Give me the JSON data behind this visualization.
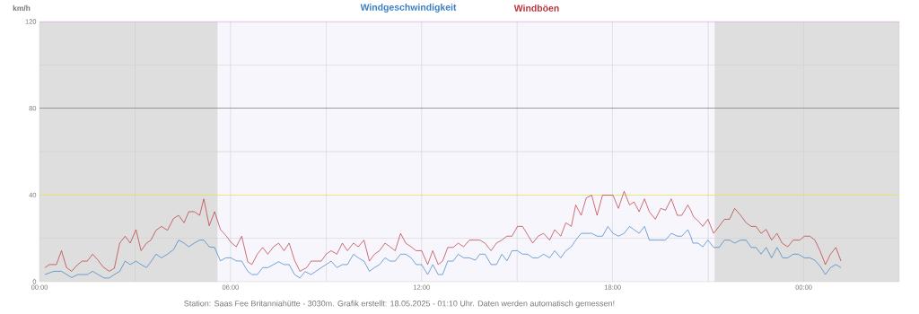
{
  "chart_data": {
    "type": "line",
    "ylabel": "km/h",
    "xlim": [
      0,
      27
    ],
    "ylim": [
      0,
      120
    ],
    "xticks": [
      {
        "value": 0,
        "label": "00:00"
      },
      {
        "value": 3,
        "label": null
      },
      {
        "value": 6,
        "label": "06:00"
      },
      {
        "value": 9,
        "label": null
      },
      {
        "value": 12,
        "label": "12:00"
      },
      {
        "value": 15,
        "label": null
      },
      {
        "value": 18,
        "label": "18:00"
      },
      {
        "value": 21,
        "label": null
      },
      {
        "value": 24,
        "label": "00:00"
      },
      {
        "value": 27,
        "label": null
      }
    ],
    "yticks": [
      0,
      {
        "value": 20,
        "label": null
      },
      40,
      {
        "value": 60,
        "label": null
      },
      80,
      {
        "value": 100,
        "label": null
      },
      120
    ],
    "grid": true,
    "legend": "top",
    "bands": [
      {
        "axis": "x",
        "from": 0,
        "to": 5.6,
        "color": "#dedede"
      },
      {
        "axis": "x",
        "from": 5.6,
        "to": 21.2,
        "color": "#f8f6fd"
      },
      {
        "axis": "x",
        "from": 21.2,
        "to": 27,
        "color": "#dedede"
      }
    ],
    "ref_lines": [
      {
        "axis": "y",
        "value": 120,
        "color": "#ee82ee"
      },
      {
        "axis": "y",
        "value": 80,
        "color": "#555555"
      },
      {
        "axis": "y",
        "value": 40,
        "color": "#f0f000"
      }
    ],
    "annotations": [
      "Station: Saas Fee Britanniahütte - 3030m. Grafik erstellt: 18.05.2025 - 01:10 Uhr. Daten werden automatisch gemessen!"
    ],
    "series": [
      {
        "name": "Windgeschwindigkeit",
        "color": "#3a7fc1",
        "x": [
          0.17,
          0.45,
          0.69,
          1.01,
          1.2,
          1.5,
          1.67,
          1.84,
          2.03,
          2.19,
          2.35,
          2.52,
          2.69,
          2.85,
          3.03,
          3.19,
          3.36,
          3.5,
          3.66,
          3.83,
          4.02,
          4.21,
          4.37,
          4.54,
          4.69,
          4.86,
          5.03,
          5.16,
          5.33,
          5.5,
          5.68,
          5.85,
          6.01,
          6.18,
          6.35,
          6.54,
          6.67,
          6.84,
          7.01,
          7.17,
          7.35,
          7.51,
          7.68,
          7.84,
          8.01,
          8.18,
          8.34,
          8.53,
          8.85,
          9.0,
          9.16,
          9.34,
          9.51,
          9.67,
          9.86,
          10.01,
          10.19,
          10.36,
          10.52,
          10.68,
          10.85,
          11.01,
          11.17,
          11.34,
          11.5,
          11.67,
          11.83,
          12.0,
          12.19,
          12.35,
          12.52,
          12.66,
          12.82,
          12.99,
          13.15,
          13.32,
          13.5,
          13.69,
          13.83,
          13.99,
          14.18,
          14.35,
          14.52,
          14.68,
          14.84,
          15.01,
          15.17,
          15.33,
          15.49,
          15.66,
          15.83,
          16.02,
          16.18,
          16.37,
          16.53,
          16.7,
          16.84,
          17.01,
          17.34,
          17.51,
          17.68,
          17.85,
          18.01,
          18.18,
          18.36,
          18.53,
          18.67,
          18.83,
          19.0,
          19.15,
          19.34,
          19.51,
          19.66,
          19.84,
          20.03,
          20.17,
          20.36,
          20.45,
          20.52,
          20.68,
          20.83,
          20.99,
          21.17,
          21.34,
          21.51,
          21.67,
          21.83,
          22.02,
          22.19,
          22.35,
          22.5,
          22.66,
          22.82,
          22.99,
          23.16,
          23.34,
          23.5,
          23.67,
          23.83,
          24.02,
          24.19,
          24.35,
          24.51,
          24.68,
          24.84,
          25.01,
          25.17
        ],
        "values": [
          3.3,
          4.8,
          4.8,
          1.9,
          3.3,
          3.3,
          4.8,
          3.3,
          1.7,
          1.7,
          3.3,
          4.8,
          9.5,
          7.9,
          9.5,
          7.9,
          6.5,
          9.2,
          12.7,
          11.0,
          12.7,
          14.8,
          19.2,
          17.8,
          16.1,
          17.8,
          19.2,
          19.2,
          16.1,
          15.8,
          9.6,
          11.0,
          11.0,
          9.6,
          9.5,
          4.8,
          3.3,
          3.3,
          6.5,
          6.5,
          7.9,
          9.2,
          7.9,
          7.9,
          3.3,
          1.7,
          4.7,
          3.3,
          6.5,
          7.9,
          9.5,
          6.5,
          7.9,
          7.9,
          12.7,
          11.0,
          9.5,
          4.8,
          6.5,
          7.9,
          11.0,
          9.5,
          9.5,
          12.7,
          12.7,
          11.0,
          7.9,
          7.9,
          3.3,
          7.9,
          3.3,
          3.3,
          9.5,
          9.5,
          12.7,
          11.0,
          11.0,
          9.9,
          12.7,
          12.7,
          7.9,
          7.9,
          12.7,
          9.6,
          14.3,
          14.3,
          12.7,
          12.7,
          11.0,
          11.0,
          12.7,
          11.0,
          14.3,
          11.0,
          14.3,
          16.1,
          19.2,
          22.3,
          22.3,
          21.0,
          21.0,
          25.5,
          22.3,
          21.0,
          22.3,
          25.5,
          24.0,
          22.3,
          25.5,
          19.2,
          19.2,
          19.2,
          19.2,
          22.3,
          21.0,
          21.0,
          24.0,
          21.0,
          17.8,
          17.8,
          16.1,
          19.2,
          15.8,
          15.8,
          19.2,
          19.2,
          17.8,
          19.2,
          19.2,
          15.8,
          15.8,
          12.7,
          15.8,
          11.0,
          15.8,
          11.0,
          11.0,
          12.7,
          12.7,
          11.0,
          11.0,
          9.9,
          7.2,
          3.3,
          6.5,
          7.9,
          6.5
        ]
      },
      {
        "name": "Windböen",
        "color": "#b8323a",
        "x": [
          0.17,
          0.31,
          0.53,
          0.69,
          0.85,
          1.01,
          1.2,
          1.34,
          1.5,
          1.67,
          1.84,
          2.0,
          2.19,
          2.35,
          2.52,
          2.69,
          2.85,
          3.03,
          3.19,
          3.36,
          3.5,
          3.66,
          3.83,
          4.02,
          4.21,
          4.37,
          4.54,
          4.69,
          4.86,
          5.03,
          5.16,
          5.33,
          5.5,
          5.68,
          5.85,
          6.01,
          6.18,
          6.35,
          6.54,
          6.67,
          6.84,
          7.01,
          7.17,
          7.35,
          7.51,
          7.68,
          7.84,
          8.01,
          8.18,
          8.39,
          8.53,
          8.85,
          9.0,
          9.16,
          9.34,
          9.51,
          9.67,
          9.86,
          10.01,
          10.19,
          10.36,
          10.52,
          10.68,
          10.85,
          11.01,
          11.17,
          11.34,
          11.5,
          11.67,
          11.83,
          12.0,
          12.19,
          12.35,
          12.52,
          12.66,
          12.82,
          12.99,
          13.15,
          13.32,
          13.5,
          13.69,
          13.83,
          13.99,
          14.18,
          14.35,
          14.52,
          14.68,
          14.84,
          15.01,
          15.17,
          15.33,
          15.49,
          15.66,
          15.83,
          16.02,
          16.18,
          16.37,
          16.53,
          16.7,
          16.84,
          17.01,
          17.17,
          17.34,
          17.51,
          17.68,
          18.01,
          18.18,
          18.36,
          18.53,
          18.67,
          18.83,
          19.0,
          19.15,
          19.34,
          19.51,
          19.66,
          19.84,
          20.03,
          20.17,
          20.36,
          20.45,
          20.54,
          20.68,
          20.83,
          20.99,
          21.17,
          21.34,
          21.51,
          21.67,
          21.83,
          22.02,
          22.19,
          22.35,
          22.5,
          22.66,
          22.82,
          22.99,
          23.16,
          23.32,
          23.5,
          23.67,
          23.88,
          24.02,
          24.19,
          24.35,
          24.51,
          24.68,
          24.84,
          25.01,
          25.17
        ],
        "values": [
          6.5,
          7.9,
          7.9,
          14.3,
          6.5,
          4.8,
          7.9,
          9.5,
          9.5,
          12.7,
          9.9,
          6.8,
          4.8,
          6.2,
          17.8,
          21.0,
          17.8,
          24.0,
          14.3,
          17.8,
          19.2,
          23.7,
          25.5,
          23.7,
          29.2,
          30.6,
          27.2,
          32.3,
          32.3,
          30.6,
          38.2,
          25.8,
          32.3,
          24.1,
          21.4,
          18.2,
          16.1,
          21.0,
          9.2,
          7.9,
          12.7,
          15.8,
          12.7,
          16.1,
          17.8,
          14.3,
          17.8,
          9.9,
          4.8,
          6.5,
          9.5,
          9.5,
          12.7,
          14.3,
          12.7,
          17.8,
          14.3,
          17.8,
          16.1,
          19.2,
          9.5,
          12.7,
          14.3,
          17.8,
          16.1,
          14.3,
          22.3,
          17.8,
          16.1,
          14.3,
          14.3,
          7.9,
          14.3,
          7.9,
          9.5,
          15.8,
          15.8,
          17.8,
          16.1,
          19.2,
          19.2,
          19.2,
          17.8,
          14.3,
          17.8,
          19.2,
          21.0,
          21.0,
          25.5,
          25.5,
          21.6,
          17.8,
          21.0,
          22.3,
          19.2,
          24.0,
          21.0,
          27.2,
          25.5,
          35.4,
          30.6,
          38.6,
          39.9,
          30.6,
          39.9,
          39.9,
          33.8,
          41.7,
          35.4,
          36.8,
          32.3,
          38.2,
          32.3,
          28.8,
          33.8,
          33.0,
          38.2,
          30.6,
          30.6,
          35.4,
          33.0,
          29.9,
          28.1,
          25.5,
          28.8,
          22.3,
          25.5,
          28.8,
          28.8,
          33.8,
          30.6,
          27.2,
          25.5,
          25.5,
          22.3,
          24.1,
          19.2,
          22.3,
          17.8,
          16.1,
          19.2,
          19.2,
          21.0,
          21.0,
          19.2,
          14.3,
          7.9,
          12.7,
          15.8,
          9.5
        ]
      }
    ]
  }
}
